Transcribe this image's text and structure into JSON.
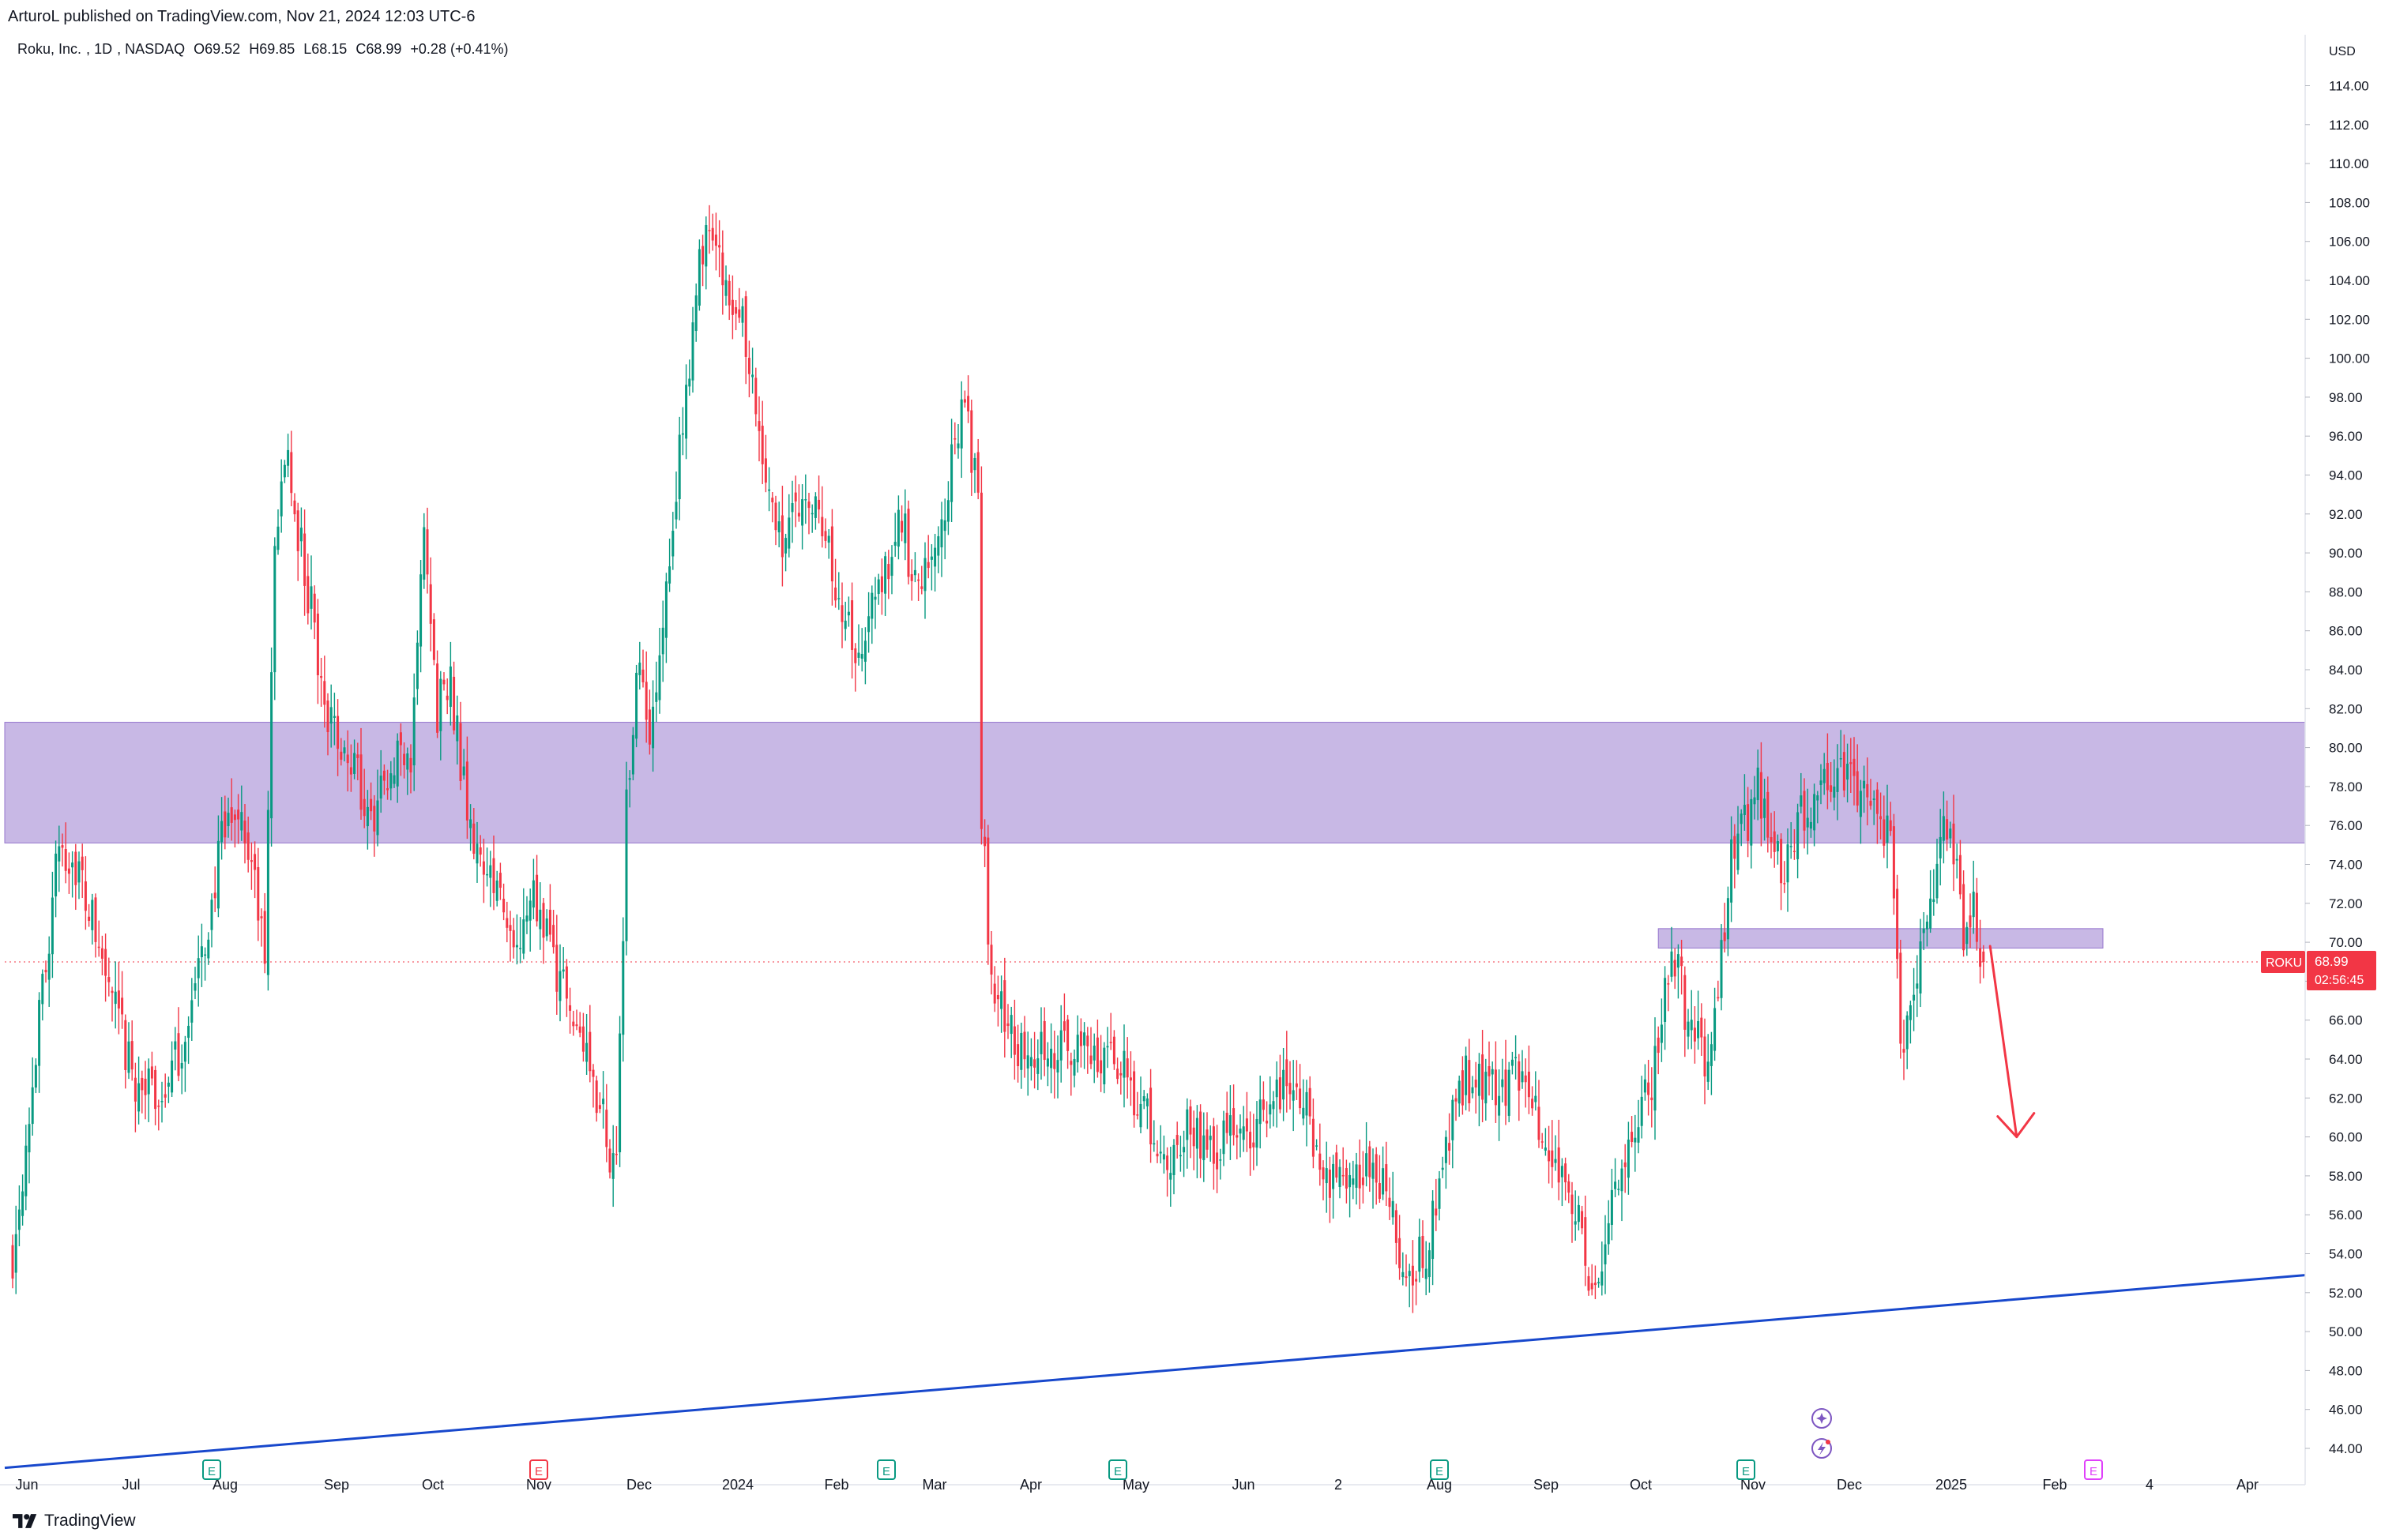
{
  "header": {
    "publisher": "ArturoL published on TradingView.com, Nov 21, 2024 12:03 UTC-6"
  },
  "legend": {
    "name": "Roku, Inc.",
    "interval": "1D",
    "exchange": "NASDAQ",
    "open": "O69.52",
    "high": "H69.85",
    "low": "L68.15",
    "close": "C68.99",
    "change": "+0.28 (+0.41%)"
  },
  "price_axis": {
    "currency": "USD",
    "symbol_tag": "ROKU",
    "last_price": "68.99",
    "countdown": "02:56:45"
  },
  "footer": {
    "brand": "TradingView"
  },
  "colors": {
    "up": "#089981",
    "down": "#f23645",
    "zone": "#b39ddb",
    "trendline": "#1848cc",
    "arrow": "#f23645",
    "earnings": "#089981",
    "earnings_neg": "#f23645",
    "dividend": "#e040fb"
  },
  "chart_data": {
    "type": "candlestick",
    "x_axis_labels": [
      "Jun",
      "Jul",
      "Aug",
      "Sep",
      "Oct",
      "Nov",
      "Dec",
      "2024",
      "Feb",
      "Mar",
      "Apr",
      "May",
      "Jun",
      "2",
      "Aug",
      "Sep",
      "Oct",
      "Nov",
      "Dec",
      "2025",
      "Feb",
      "4",
      "Apr"
    ],
    "y_ticks": [
      44,
      46,
      48,
      50,
      52,
      54,
      56,
      58,
      60,
      62,
      64,
      66,
      68,
      70,
      72,
      74,
      76,
      78,
      80,
      82,
      84,
      86,
      88,
      90,
      92,
      94,
      96,
      98,
      100,
      102,
      104,
      106,
      108,
      110,
      112,
      114
    ],
    "ylim": [
      42.6,
      116.2
    ],
    "last_price": 68.99,
    "control_points": [
      {
        "i": 0,
        "p": 54
      },
      {
        "i": 4,
        "p": 60
      },
      {
        "i": 8,
        "p": 66
      },
      {
        "i": 14,
        "p": 75
      },
      {
        "i": 19,
        "p": 74
      },
      {
        "i": 24,
        "p": 71
      },
      {
        "i": 30,
        "p": 67
      },
      {
        "i": 36,
        "p": 63
      },
      {
        "i": 44,
        "p": 62
      },
      {
        "i": 50,
        "p": 64
      },
      {
        "i": 57,
        "p": 69
      },
      {
        "i": 63,
        "p": 75
      },
      {
        "i": 68,
        "p": 77
      },
      {
        "i": 72,
        "p": 74
      },
      {
        "i": 76,
        "p": 69
      },
      {
        "i": 79,
        "p": 91
      },
      {
        "i": 82,
        "p": 95
      },
      {
        "i": 90,
        "p": 87
      },
      {
        "i": 96,
        "p": 81
      },
      {
        "i": 103,
        "p": 79
      },
      {
        "i": 108,
        "p": 76
      },
      {
        "i": 115,
        "p": 79
      },
      {
        "i": 120,
        "p": 80
      },
      {
        "i": 124,
        "p": 91
      },
      {
        "i": 128,
        "p": 82
      },
      {
        "i": 132,
        "p": 83
      },
      {
        "i": 138,
        "p": 76
      },
      {
        "i": 145,
        "p": 73
      },
      {
        "i": 152,
        "p": 69
      },
      {
        "i": 157,
        "p": 72
      },
      {
        "i": 163,
        "p": 69
      },
      {
        "i": 170,
        "p": 66
      },
      {
        "i": 176,
        "p": 62
      },
      {
        "i": 182,
        "p": 58
      },
      {
        "i": 185,
        "p": 77
      },
      {
        "i": 188,
        "p": 84
      },
      {
        "i": 192,
        "p": 81
      },
      {
        "i": 196,
        "p": 87
      },
      {
        "i": 200,
        "p": 93
      },
      {
        "i": 205,
        "p": 102
      },
      {
        "i": 209,
        "p": 107
      },
      {
        "i": 214,
        "p": 104
      },
      {
        "i": 220,
        "p": 102
      },
      {
        "i": 226,
        "p": 95
      },
      {
        "i": 232,
        "p": 90
      },
      {
        "i": 238,
        "p": 93
      },
      {
        "i": 244,
        "p": 91
      },
      {
        "i": 250,
        "p": 87
      },
      {
        "i": 256,
        "p": 84
      },
      {
        "i": 260,
        "p": 88
      },
      {
        "i": 264,
        "p": 89
      },
      {
        "i": 268,
        "p": 92
      },
      {
        "i": 272,
        "p": 88
      },
      {
        "i": 276,
        "p": 90
      },
      {
        "i": 280,
        "p": 91
      },
      {
        "i": 286,
        "p": 98
      },
      {
        "i": 291,
        "p": 93
      },
      {
        "i": 292,
        "p": 77
      },
      {
        "i": 295,
        "p": 68
      },
      {
        "i": 300,
        "p": 66
      },
      {
        "i": 305,
        "p": 64
      },
      {
        "i": 312,
        "p": 65
      },
      {
        "i": 318,
        "p": 64
      },
      {
        "i": 324,
        "p": 65
      },
      {
        "i": 330,
        "p": 64
      },
      {
        "i": 336,
        "p": 63
      },
      {
        "i": 342,
        "p": 61
      },
      {
        "i": 348,
        "p": 59
      },
      {
        "i": 354,
        "p": 61
      },
      {
        "i": 360,
        "p": 59
      },
      {
        "i": 366,
        "p": 60
      },
      {
        "i": 372,
        "p": 60
      },
      {
        "i": 378,
        "p": 61
      },
      {
        "i": 384,
        "p": 63
      },
      {
        "i": 390,
        "p": 61
      },
      {
        "i": 396,
        "p": 58
      },
      {
        "i": 402,
        "p": 57
      },
      {
        "i": 408,
        "p": 58
      },
      {
        "i": 414,
        "p": 57
      },
      {
        "i": 420,
        "p": 53
      },
      {
        "i": 426,
        "p": 54
      },
      {
        "i": 432,
        "p": 60
      },
      {
        "i": 438,
        "p": 63
      },
      {
        "i": 444,
        "p": 63
      },
      {
        "i": 450,
        "p": 62
      },
      {
        "i": 456,
        "p": 64
      },
      {
        "i": 460,
        "p": 61
      },
      {
        "i": 464,
        "p": 59
      },
      {
        "i": 468,
        "p": 57
      },
      {
        "i": 472,
        "p": 56
      },
      {
        "i": 476,
        "p": 52
      },
      {
        "i": 480,
        "p": 55
      },
      {
        "i": 484,
        "p": 57
      },
      {
        "i": 490,
        "p": 61
      },
      {
        "i": 494,
        "p": 63
      },
      {
        "i": 498,
        "p": 68
      },
      {
        "i": 501,
        "p": 69
      },
      {
        "i": 505,
        "p": 66
      },
      {
        "i": 510,
        "p": 64
      },
      {
        "i": 514,
        "p": 68
      },
      {
        "i": 518,
        "p": 74
      },
      {
        "i": 522,
        "p": 76
      },
      {
        "i": 526,
        "p": 78
      },
      {
        "i": 530,
        "p": 75
      },
      {
        "i": 534,
        "p": 74
      },
      {
        "i": 538,
        "p": 76
      },
      {
        "i": 542,
        "p": 77
      },
      {
        "i": 546,
        "p": 78
      },
      {
        "i": 550,
        "p": 79
      },
      {
        "i": 554,
        "p": 78
      },
      {
        "i": 558,
        "p": 77
      },
      {
        "i": 562,
        "p": 76
      },
      {
        "i": 566,
        "p": 75
      },
      {
        "i": 568,
        "p": 68
      },
      {
        "i": 570,
        "p": 64
      },
      {
        "i": 574,
        "p": 69
      },
      {
        "i": 578,
        "p": 72
      },
      {
        "i": 582,
        "p": 76
      },
      {
        "i": 586,
        "p": 74
      },
      {
        "i": 588,
        "p": 70
      },
      {
        "i": 591,
        "p": 72
      },
      {
        "i": 594,
        "p": 68.99
      }
    ],
    "zones": [
      {
        "from_price": 75.1,
        "to_price": 81.3,
        "from_bar": 0,
        "to_bar": 752
      },
      {
        "from_price": 69.7,
        "to_price": 70.7,
        "from_bar": 496,
        "to_bar": 630
      }
    ],
    "trendline": {
      "from_bar": 0,
      "from_price": 43.0,
      "to_bar": 752,
      "to_price": 52.9
    },
    "arrow": {
      "from_bar": 596,
      "from_price": 69.8,
      "to_bar": 604,
      "to_price": 60.0
    },
    "events": [
      "E",
      "E",
      "E",
      "E",
      "E",
      "E",
      "E"
    ]
  }
}
